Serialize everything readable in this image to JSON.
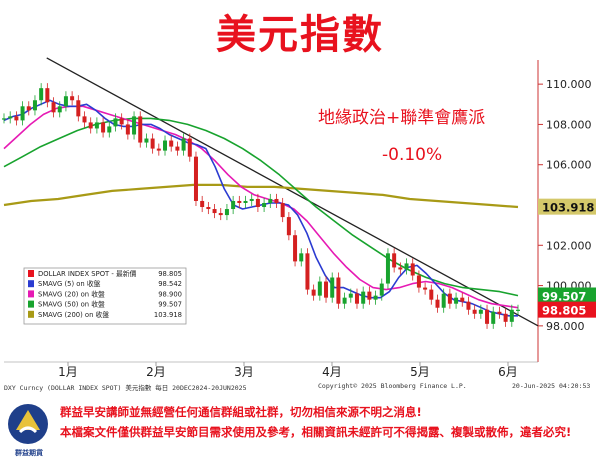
{
  "title": "美元指數",
  "annotation": {
    "text": "地緣政治+聯準會鷹派",
    "change": "-0.10%"
  },
  "chart_data": {
    "type": "line",
    "title": "美元指數",
    "xlabel": "2025",
    "ylabel": "",
    "ylim": [
      97,
      111
    ],
    "x_ticks": [
      "1月",
      "2月",
      "3月",
      "4月",
      "5月",
      "6月"
    ],
    "y_ticks": [
      "110.000",
      "108.000",
      "106.000",
      "104.000",
      "102.000",
      "100.000",
      "98.000"
    ],
    "legend_placement": "bottom-left",
    "grid": false,
    "legend": [
      {
        "label": "DOLLAR INDEX SPOT - 最新價",
        "value": "98.805",
        "color": "#e8121e"
      },
      {
        "label": "SMAVG (5)  on 收盤",
        "value": "98.542",
        "color": "#2b3bd1"
      },
      {
        "label": "SMAVG (20)  on 收盤",
        "value": "98.900",
        "color": "#e61ab4"
      },
      {
        "label": "SMAVG (50)  on 收盤",
        "value": "99.507",
        "color": "#18a32e"
      },
      {
        "label": "SMAVG (200)  on 收盤",
        "value": "103.918",
        "color": "#a89a16"
      }
    ],
    "right_labels": [
      {
        "text": "99.507",
        "value": 99.507,
        "color": "#18a32e"
      },
      {
        "text": "98.805",
        "value": 98.805,
        "color": "#e8121e"
      },
      {
        "text": "103.918",
        "value": 103.918,
        "color": "#d4c86a"
      }
    ],
    "series": [
      {
        "name": "DOLLAR INDEX SPOT",
        "values": [
          108.3,
          108.4,
          108.2,
          108.9,
          108.7,
          109.2,
          109.8,
          109.1,
          108.6,
          108.9,
          109.4,
          109.2,
          108.4,
          108.1,
          107.8,
          108.1,
          107.6,
          107.9,
          108.3,
          108.0,
          107.5,
          108.4,
          107.1,
          107.3,
          106.8,
          106.7,
          107.2,
          106.9,
          106.7,
          107.3,
          106.4,
          104.2,
          103.9,
          103.8,
          103.6,
          103.5,
          103.8,
          104.2,
          104.1,
          104.2,
          104.3,
          103.9,
          104.1,
          104.3,
          104.1,
          103.4,
          102.5,
          101.2,
          101.6,
          99.8,
          99.5,
          100.2,
          99.4,
          100.4,
          99.1,
          99.4,
          99.6,
          99.1,
          99.7,
          99.3,
          99.5,
          100.1,
          101.6,
          100.9,
          100.8,
          101.1,
          100.5,
          99.9,
          99.8,
          99.3,
          98.9,
          99.6,
          99.1,
          99.4,
          99.2,
          98.8,
          98.6,
          98.8,
          98.1,
          98.7,
          98.6,
          98.2,
          98.8,
          98.8
        ]
      },
      {
        "name": "SMAVG (5)",
        "values": [
          108.2,
          108.4,
          108.5,
          108.8,
          109.0,
          109.2,
          109.0,
          108.9,
          108.9,
          109.0,
          108.7,
          108.3,
          108.0,
          107.9,
          107.9,
          108.0,
          108.0,
          107.8,
          107.5,
          107.3,
          107.1,
          107.0,
          106.8,
          105.9,
          104.8,
          104.0,
          103.8,
          103.9,
          104.0,
          104.1,
          104.1,
          104.0,
          103.5,
          102.6,
          101.4,
          100.5,
          99.9,
          99.9,
          99.7,
          99.5,
          99.4,
          99.4,
          99.7,
          100.4,
          100.9,
          101.0,
          100.6,
          100.1,
          99.6,
          99.3,
          99.2,
          99.1,
          98.9,
          98.7,
          98.6,
          98.5,
          98.5
        ]
      },
      {
        "name": "SMAVG (20)",
        "values": [
          106.8,
          107.4,
          108.0,
          108.5,
          108.8,
          108.9,
          108.9,
          108.7,
          108.5,
          108.3,
          108.1,
          107.9,
          107.7,
          107.5,
          107.2,
          106.8,
          106.2,
          105.5,
          104.9,
          104.5,
          104.3,
          104.1,
          103.8,
          103.2,
          102.4,
          101.6,
          100.9,
          100.3,
          99.9,
          99.8,
          99.9,
          100.1,
          100.2,
          100.1,
          99.9,
          99.6,
          99.3,
          99.1,
          99.0,
          98.9
        ]
      },
      {
        "name": "SMAVG (50)",
        "values": [
          105.9,
          106.4,
          106.9,
          107.3,
          107.7,
          108.0,
          108.2,
          108.3,
          108.3,
          108.2,
          108.0,
          107.7,
          107.3,
          106.8,
          106.2,
          105.5,
          104.7,
          103.9,
          103.2,
          102.5,
          101.9,
          101.3,
          100.8,
          100.4,
          100.1,
          99.9,
          99.8,
          99.7,
          99.5
        ]
      },
      {
        "name": "SMAVG (200)",
        "values": [
          104.0,
          104.2,
          104.3,
          104.5,
          104.7,
          104.8,
          104.9,
          105.0,
          105.0,
          104.9,
          104.9,
          104.8,
          104.7,
          104.6,
          104.5,
          104.3,
          104.2,
          104.1,
          104.0,
          103.9
        ]
      }
    ],
    "trendline": [
      [
        0.08,
        111.3
      ],
      [
        1.0,
        98.0
      ]
    ]
  },
  "footer": {
    "left": "DXY Curncy (DOLLAR INDEX SPOT)  美元指數   每日  20DEC2024-20JUN2025",
    "center": "Copyright© 2025 Bloomberg Finance L.P.",
    "right": "20-Jun-2025 04:20:53"
  },
  "logo_text": "群益期貨",
  "disclaimers": [
    "群益早安講師並無經營任何通信群組或社群，切勿相信來源不明之消息!",
    "本檔案文件僅供群益早安節目需求使用及參考，相關資訊未經許可不得揭露、複製或散佈，違者必究!"
  ]
}
